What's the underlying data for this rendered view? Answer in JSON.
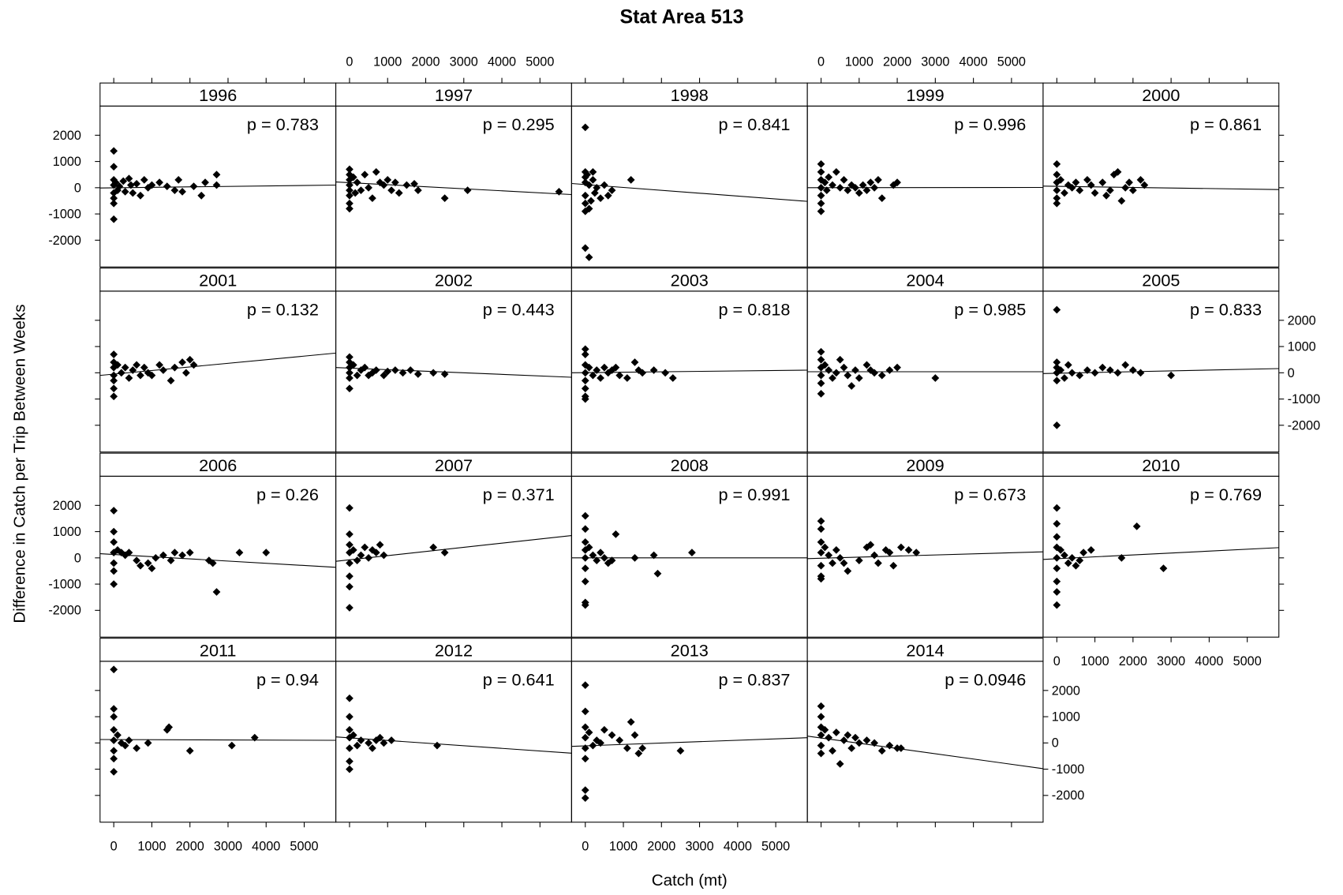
{
  "chart_data": {
    "type": "scatter",
    "title": "Stat Area 513",
    "xlabel": "Catch (mt)",
    "ylabel": "Difference in Catch per Trip Between Weeks",
    "xlim": [
      -360,
      5830
    ],
    "xticks": [
      0,
      1000,
      2000,
      3000,
      4000,
      5000
    ],
    "ylim": [
      -3020,
      3110
    ],
    "yticks": [
      -2000,
      -1000,
      0,
      1000,
      2000
    ],
    "color": "#000000",
    "panels": [
      {
        "title": "1996",
        "annotation": "p = 0.783",
        "fit": [
          -10,
          100
        ],
        "x": [
          0,
          0,
          0,
          0,
          0,
          0,
          0,
          0,
          50,
          100,
          150,
          250,
          300,
          400,
          450,
          500,
          600,
          700,
          800,
          900,
          1000,
          1200,
          1400,
          1600,
          1700,
          1800,
          2100,
          2300,
          2400,
          2700,
          2700
        ],
        "y": [
          1400,
          800,
          300,
          100,
          -200,
          -400,
          -600,
          -1200,
          200,
          -100,
          50,
          250,
          -150,
          350,
          100,
          -200,
          150,
          -300,
          300,
          0,
          100,
          200,
          50,
          -100,
          300,
          -150,
          50,
          -300,
          200,
          500,
          100
        ]
      },
      {
        "title": "1997",
        "annotation": "p = 0.295",
        "fit": [
          220,
          -260
        ],
        "x": [
          0,
          0,
          0,
          0,
          0,
          0,
          0,
          0,
          100,
          150,
          200,
          300,
          400,
          500,
          600,
          700,
          800,
          900,
          1000,
          1100,
          1200,
          1300,
          1500,
          1700,
          1800,
          2500,
          3100,
          5500
        ],
        "y": [
          700,
          500,
          300,
          100,
          -100,
          -300,
          -600,
          -800,
          400,
          -200,
          200,
          -100,
          500,
          0,
          -400,
          600,
          200,
          100,
          300,
          -100,
          200,
          -200,
          100,
          150,
          -100,
          -400,
          -100,
          -150
        ]
      },
      {
        "title": "1998",
        "annotation": "p = 0.841",
        "fit": [
          160,
          -520
        ],
        "x": [
          0,
          0,
          0,
          0,
          0,
          0,
          0,
          0,
          100,
          100,
          50,
          100,
          200,
          250,
          300,
          400,
          500,
          600,
          1200,
          700,
          150,
          200
        ],
        "y": [
          2300,
          600,
          400,
          200,
          -300,
          -600,
          -900,
          -2300,
          -2650,
          -800,
          500,
          100,
          300,
          -200,
          0,
          -400,
          100,
          -300,
          300,
          -100,
          -500,
          600
        ]
      },
      {
        "title": "1999",
        "annotation": "p = 0.996",
        "fit": [
          0,
          10
        ],
        "x": [
          0,
          0,
          0,
          0,
          0,
          0,
          0,
          100,
          150,
          200,
          300,
          400,
          500,
          600,
          700,
          800,
          900,
          1000,
          1100,
          1200,
          1300,
          1400,
          1500,
          1600,
          1900,
          2000
        ],
        "y": [
          900,
          600,
          300,
          0,
          -300,
          -600,
          -900,
          200,
          -100,
          400,
          100,
          600,
          0,
          300,
          -100,
          100,
          0,
          -200,
          100,
          -100,
          200,
          0,
          300,
          -400,
          100,
          200
        ]
      },
      {
        "title": "2000",
        "annotation": "p = 0.861",
        "fit": [
          60,
          -70
        ],
        "x": [
          0,
          0,
          0,
          0,
          0,
          0,
          100,
          200,
          300,
          400,
          500,
          600,
          800,
          900,
          1000,
          1200,
          1300,
          1400,
          1500,
          1600,
          1700,
          1800,
          1900,
          2000,
          2200,
          2300
        ],
        "y": [
          900,
          500,
          200,
          -100,
          -400,
          -600,
          300,
          -200,
          100,
          0,
          200,
          -100,
          300,
          100,
          -200,
          200,
          -300,
          -100,
          500,
          600,
          -500,
          0,
          200,
          -100,
          300,
          100
        ]
      },
      {
        "title": "2001",
        "annotation": "p = 0.132",
        "fit": [
          -100,
          750
        ],
        "x": [
          0,
          0,
          0,
          0,
          0,
          0,
          0,
          100,
          200,
          300,
          400,
          500,
          600,
          700,
          800,
          900,
          1000,
          1200,
          1300,
          1500,
          1600,
          1800,
          1900,
          2000,
          2100
        ],
        "y": [
          700,
          400,
          200,
          -100,
          -300,
          -600,
          -900,
          300,
          0,
          200,
          -200,
          100,
          300,
          -100,
          200,
          0,
          -100,
          300,
          100,
          -300,
          200,
          400,
          0,
          500,
          300
        ]
      },
      {
        "title": "2002",
        "annotation": "p = 0.443",
        "fit": [
          200,
          -170
        ],
        "x": [
          0,
          0,
          0,
          0,
          0,
          0,
          100,
          200,
          300,
          400,
          500,
          600,
          700,
          900,
          1000,
          1200,
          1400,
          1600,
          1800,
          2200,
          2500
        ],
        "y": [
          600,
          400,
          200,
          0,
          -200,
          -600,
          300,
          -100,
          100,
          200,
          -100,
          0,
          100,
          -100,
          50,
          100,
          0,
          100,
          -50,
          0,
          -50
        ]
      },
      {
        "title": "2003",
        "annotation": "p = 0.818",
        "fit": [
          0,
          100
        ],
        "x": [
          0,
          0,
          0,
          0,
          0,
          0,
          0,
          0,
          100,
          200,
          300,
          400,
          500,
          600,
          700,
          800,
          900,
          1100,
          1300,
          1400,
          1500,
          1800,
          2100,
          2300
        ],
        "y": [
          900,
          700,
          300,
          0,
          -300,
          -600,
          -900,
          -1000,
          200,
          -100,
          100,
          -200,
          200,
          0,
          100,
          200,
          -100,
          -200,
          400,
          100,
          0,
          100,
          0,
          -200
        ]
      },
      {
        "title": "2004",
        "annotation": "p = 0.985",
        "fit": [
          40,
          40
        ],
        "x": [
          0,
          0,
          0,
          0,
          0,
          0,
          100,
          200,
          300,
          400,
          500,
          600,
          700,
          800,
          900,
          1000,
          1200,
          1300,
          1400,
          1600,
          1800,
          2000,
          3000
        ],
        "y": [
          800,
          500,
          200,
          -100,
          -400,
          -800,
          300,
          100,
          -200,
          0,
          500,
          200,
          -100,
          -500,
          100,
          -200,
          300,
          100,
          0,
          -100,
          100,
          200,
          -200
        ]
      },
      {
        "title": "2005",
        "annotation": "p = 0.833",
        "fit": [
          -30,
          160
        ],
        "x": [
          0,
          0,
          0,
          0,
          0,
          0,
          100,
          200,
          300,
          400,
          600,
          800,
          1000,
          1200,
          1400,
          1600,
          1800,
          2000,
          2200,
          3000
        ],
        "y": [
          2400,
          400,
          200,
          0,
          -300,
          -2000,
          100,
          -200,
          300,
          0,
          -100,
          100,
          0,
          200,
          100,
          0,
          300,
          100,
          0,
          -100
        ]
      },
      {
        "title": "2006",
        "annotation": "p = 0.26",
        "fit": [
          160,
          -360
        ],
        "x": [
          0,
          0,
          0,
          0,
          0,
          0,
          0,
          100,
          200,
          300,
          400,
          600,
          700,
          900,
          1000,
          1100,
          1300,
          1500,
          1600,
          1800,
          2000,
          2500,
          2600,
          2700,
          3300,
          4000
        ],
        "y": [
          1800,
          1000,
          600,
          200,
          -200,
          -500,
          -1000,
          300,
          200,
          100,
          200,
          -100,
          -300,
          -200,
          -400,
          0,
          100,
          -100,
          200,
          100,
          200,
          -100,
          -200,
          -1300,
          200,
          200
        ]
      },
      {
        "title": "2007",
        "annotation": "p = 0.371",
        "fit": [
          -130,
          850
        ],
        "x": [
          0,
          0,
          0,
          0,
          0,
          0,
          0,
          0,
          100,
          200,
          300,
          400,
          500,
          600,
          700,
          800,
          900,
          2200,
          2500
        ],
        "y": [
          1900,
          900,
          500,
          200,
          -200,
          -700,
          -1100,
          -1900,
          300,
          -100,
          100,
          400,
          0,
          300,
          200,
          500,
          100,
          400,
          200
        ]
      },
      {
        "title": "2008",
        "annotation": "p = 0.991",
        "fit": [
          0,
          0
        ],
        "x": [
          0,
          0,
          0,
          0,
          0,
          0,
          0,
          0,
          0,
          100,
          200,
          300,
          400,
          500,
          600,
          800,
          700,
          1300,
          1800,
          1900,
          2800
        ],
        "y": [
          1600,
          1100,
          600,
          300,
          0,
          -400,
          -900,
          -1700,
          -1800,
          400,
          100,
          -100,
          200,
          0,
          -200,
          900,
          -100,
          0,
          100,
          -600,
          200
        ]
      },
      {
        "title": "2009",
        "annotation": "p = 0.673",
        "fit": [
          -30,
          230
        ],
        "x": [
          0,
          0,
          0,
          0,
          0,
          0,
          0,
          100,
          200,
          300,
          400,
          500,
          600,
          700,
          1000,
          1200,
          1300,
          1400,
          1500,
          1700,
          1800,
          1900,
          2100,
          2300,
          2500
        ],
        "y": [
          1400,
          1100,
          600,
          200,
          -300,
          -700,
          -800,
          400,
          100,
          -200,
          300,
          0,
          -200,
          -500,
          -100,
          400,
          500,
          100,
          -200,
          300,
          200,
          -300,
          400,
          300,
          200
        ]
      },
      {
        "title": "2010",
        "annotation": "p = 0.769",
        "fit": [
          -60,
          390
        ],
        "x": [
          0,
          0,
          0,
          0,
          0,
          0,
          0,
          0,
          0,
          100,
          200,
          300,
          400,
          500,
          600,
          700,
          900,
          1700,
          2100,
          2800
        ],
        "y": [
          1900,
          1300,
          800,
          400,
          0,
          -400,
          -900,
          -1300,
          -1800,
          300,
          100,
          -200,
          0,
          -300,
          -100,
          200,
          300,
          0,
          1200,
          -400
        ]
      },
      {
        "title": "2011",
        "annotation": "p = 0.94",
        "fit": [
          130,
          100
        ],
        "x": [
          0,
          0,
          0,
          0,
          0,
          0,
          0,
          0,
          100,
          200,
          300,
          400,
          600,
          900,
          1400,
          1450,
          2000,
          3100,
          3700
        ],
        "y": [
          2800,
          1300,
          1000,
          500,
          100,
          -300,
          -600,
          -1100,
          300,
          0,
          -100,
          100,
          -200,
          0,
          500,
          600,
          -300,
          -100,
          200
        ]
      },
      {
        "title": "2012",
        "annotation": "p = 0.641",
        "fit": [
          230,
          -390
        ],
        "x": [
          0,
          0,
          0,
          0,
          0,
          0,
          0,
          100,
          200,
          300,
          500,
          600,
          700,
          800,
          900,
          1100,
          2300
        ],
        "y": [
          1700,
          1000,
          500,
          200,
          -200,
          -700,
          -1000,
          300,
          -100,
          100,
          0,
          -200,
          100,
          200,
          0,
          100,
          -100
        ]
      },
      {
        "title": "2013",
        "annotation": "p = 0.837",
        "fit": [
          -130,
          200
        ],
        "x": [
          0,
          0,
          0,
          0,
          0,
          0,
          0,
          0,
          100,
          200,
          300,
          400,
          500,
          700,
          900,
          1100,
          1200,
          1300,
          1400,
          1500,
          2500
        ],
        "y": [
          2200,
          1200,
          600,
          200,
          -200,
          -600,
          -1800,
          -2100,
          400,
          -100,
          100,
          0,
          500,
          300,
          100,
          -200,
          800,
          300,
          -400,
          -200,
          -300
        ]
      },
      {
        "title": "2014",
        "annotation": "p = 0.0946",
        "fit": [
          260,
          -980
        ],
        "x": [
          0,
          0,
          0,
          0,
          0,
          0,
          100,
          200,
          300,
          400,
          500,
          600,
          700,
          800,
          900,
          1000,
          1200,
          1400,
          1600,
          1800,
          2000,
          2100
        ],
        "y": [
          1400,
          1000,
          600,
          300,
          -100,
          -400,
          500,
          200,
          -300,
          400,
          -800,
          100,
          300,
          -200,
          200,
          0,
          100,
          0,
          -300,
          -100,
          -200,
          -200
        ]
      }
    ]
  }
}
